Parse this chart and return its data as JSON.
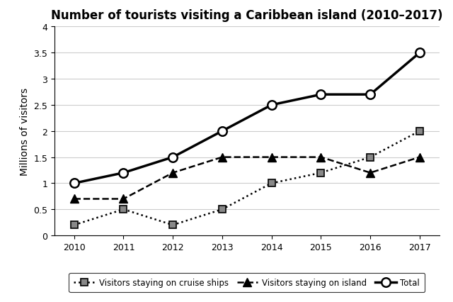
{
  "title": "Number of tourists visiting a Caribbean island (2010–2017)",
  "ylabel": "Millions of visitors",
  "years": [
    2010,
    2011,
    2012,
    2013,
    2014,
    2015,
    2016,
    2017
  ],
  "cruise_ships": [
    0.2,
    0.5,
    0.2,
    0.5,
    1.0,
    1.2,
    1.5,
    2.0
  ],
  "island": [
    0.7,
    0.7,
    1.2,
    1.5,
    1.5,
    1.5,
    1.2,
    1.5
  ],
  "total": [
    1.0,
    1.2,
    1.5,
    2.0,
    2.5,
    2.7,
    2.7,
    3.5
  ],
  "ylim": [
    0,
    4
  ],
  "yticks": [
    0,
    0.5,
    1.0,
    1.5,
    2.0,
    2.5,
    3.0,
    3.5,
    4.0
  ],
  "legend_labels": [
    "Visitors staying on cruise ships",
    "Visitors staying on island",
    "Total"
  ],
  "background_color": "#ffffff",
  "marker_cruise_color": "#888888",
  "marker_total_color": "#ffffff"
}
